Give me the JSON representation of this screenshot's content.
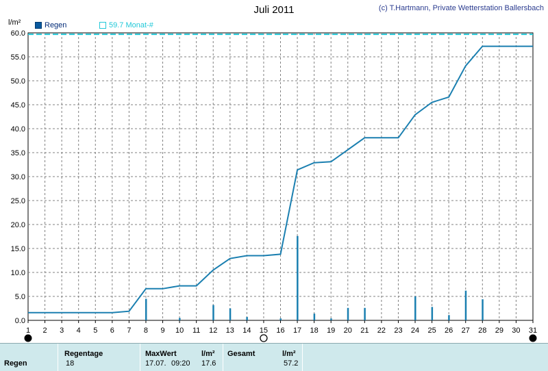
{
  "header": {
    "title": "Juli 2011",
    "copyright": "(c) T.Hartmann, Private Wetterstation Ballersbach",
    "unit": "l/m²"
  },
  "legend": {
    "rain": "Regen",
    "month": "59.7 Monat-#"
  },
  "colors": {
    "line": "#1a7fb0",
    "bars": "#1a7fb0",
    "reference": "#20c8d8",
    "grid": "#808080",
    "summary_bg": "#cfe9ec"
  },
  "chart_data": {
    "type": "bar",
    "title": "Juli 2011",
    "ylabel": "l/m²",
    "xlim": [
      1,
      31
    ],
    "ylim": [
      0,
      60
    ],
    "yticks": [
      "0.0",
      "5.0",
      "10.0",
      "15.0",
      "20.0",
      "25.0",
      "30.0",
      "35.0",
      "40.0",
      "45.0",
      "50.0",
      "55.0",
      "60.0"
    ],
    "xticks": [
      "1",
      "2",
      "3",
      "4",
      "5",
      "6",
      "7",
      "8",
      "9",
      "10",
      "11",
      "12",
      "13",
      "14",
      "15",
      "16",
      "17",
      "18",
      "19",
      "20",
      "21",
      "22",
      "23",
      "24",
      "25",
      "26",
      "27",
      "28",
      "29",
      "30",
      "31"
    ],
    "grid": true,
    "series": [
      {
        "name": "Regen",
        "kind": "bar",
        "x": [
          8,
          10,
          12,
          13,
          14,
          16,
          17,
          18,
          19,
          20,
          21,
          24,
          25,
          26,
          27,
          28
        ],
        "values": [
          4.5,
          0.5,
          3.2,
          2.5,
          0.7,
          0.4,
          17.6,
          1.4,
          0.4,
          2.6,
          2.6,
          5.0,
          2.8,
          1.1,
          6.2,
          4.4
        ]
      },
      {
        "kind": "line",
        "x": [
          1,
          2,
          3,
          4,
          5,
          6,
          7,
          8,
          9,
          10,
          11,
          12,
          13,
          14,
          15,
          16,
          17,
          18,
          19,
          20,
          21,
          22,
          23,
          24,
          25,
          26,
          27,
          28,
          29,
          30,
          31
        ],
        "values": [
          1.6,
          1.6,
          1.6,
          1.6,
          1.6,
          1.6,
          1.9,
          6.6,
          6.6,
          7.2,
          7.2,
          10.5,
          12.9,
          13.5,
          13.5,
          13.8,
          31.4,
          32.9,
          33.1,
          35.6,
          38.1,
          38.1,
          38.1,
          42.9,
          45.5,
          46.6,
          53.1,
          57.2,
          57.2,
          57.2,
          57.2
        ]
      },
      {
        "name": "59.7 Monat-#",
        "kind": "reference",
        "values": [
          59.7
        ]
      }
    ],
    "markers": [
      {
        "x": 1,
        "kind": "new-moon"
      },
      {
        "x": 15,
        "kind": "full-moon"
      },
      {
        "x": 31,
        "kind": "new-moon"
      }
    ]
  },
  "summary": {
    "row_label": "Regen",
    "regentage_label": "Regentage",
    "regentage_value": "18",
    "maxwert_label": "MaxWert",
    "maxwert_unit": "l/m²",
    "maxwert_date": "17.07.",
    "maxwert_time": "09:20",
    "maxwert_value": "17.6",
    "gesamt_label": "Gesamt",
    "gesamt_unit": "l/m²",
    "gesamt_value": "57.2"
  }
}
